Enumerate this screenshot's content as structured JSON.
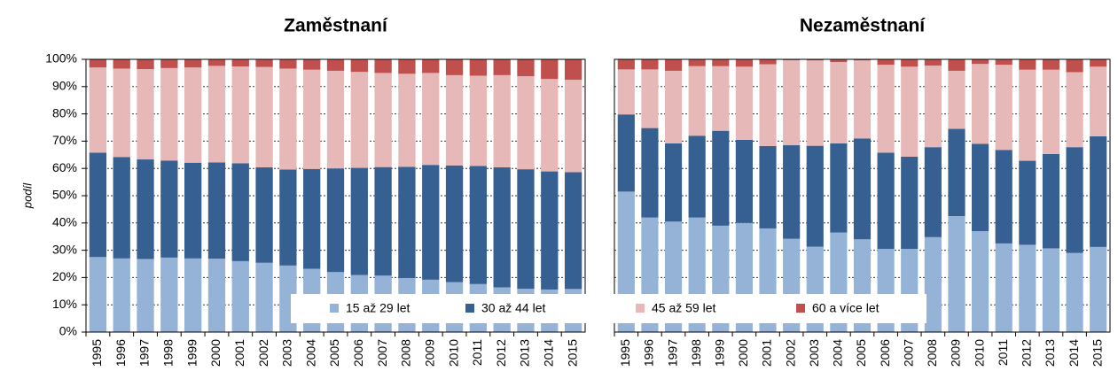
{
  "chart_data": [
    {
      "type": "bar",
      "stacked": true,
      "title": "Zaměstnaní",
      "y_label": "podíl",
      "categories": [
        "1995",
        "1996",
        "1997",
        "1998",
        "1999",
        "2000",
        "2001",
        "2002",
        "2003",
        "2004",
        "2005",
        "2006",
        "2007",
        "2008",
        "2009",
        "2010",
        "2011",
        "2012",
        "2013",
        "2014",
        "2015"
      ],
      "series": [
        {
          "name": "15 až 29 let",
          "color": "#95b3d7",
          "values": [
            27.5,
            27,
            26.8,
            27.3,
            27,
            26.9,
            26,
            25.4,
            24.4,
            23.2,
            22,
            20.9,
            20.7,
            19.8,
            19.2,
            18.3,
            17.6,
            16.4,
            15.9,
            15.6,
            15.8
          ]
        },
        {
          "name": "30 až 44 let",
          "color": "#376092",
          "values": [
            38.3,
            37.2,
            36.5,
            35.6,
            35.1,
            35.3,
            35.9,
            35,
            35.2,
            36.6,
            38,
            39.3,
            39.8,
            40.8,
            42.1,
            42.8,
            43.3,
            44,
            43.8,
            43.3,
            42.8
          ]
        },
        {
          "name": "45 až 59 let",
          "color": "#e6b9b8",
          "values": [
            31.2,
            32.4,
            33.1,
            33.9,
            34.9,
            35.4,
            35.5,
            36.8,
            37,
            36.4,
            35.8,
            35.2,
            34.5,
            34.1,
            33.7,
            33.1,
            33.1,
            33.8,
            34.1,
            33.9,
            33.9
          ]
        },
        {
          "name": "60 a více let",
          "color": "#c0504d",
          "values": [
            3,
            3.4,
            3.6,
            3.2,
            3,
            2.4,
            2.6,
            2.8,
            3.4,
            3.8,
            4.2,
            4.6,
            5,
            5.3,
            5,
            5.8,
            6,
            5.8,
            6.2,
            7.2,
            7.5
          ]
        }
      ],
      "ylim": [
        0,
        100
      ],
      "yticks": [
        {
          "value": 0,
          "label": "0%"
        },
        {
          "value": 10,
          "label": "10%"
        },
        {
          "value": 20,
          "label": "20%"
        },
        {
          "value": 30,
          "label": "30%"
        },
        {
          "value": 40,
          "label": "40%"
        },
        {
          "value": 50,
          "label": "50%"
        },
        {
          "value": 60,
          "label": "60%"
        },
        {
          "value": 70,
          "label": "70%"
        },
        {
          "value": 80,
          "label": "80%"
        },
        {
          "value": 90,
          "label": "90%"
        },
        {
          "value": 100,
          "label": "100%"
        }
      ],
      "grid": true
    },
    {
      "type": "bar",
      "stacked": true,
      "title": "Nezaměstnaní",
      "categories": [
        "1995",
        "1996",
        "1997",
        "1998",
        "1999",
        "2000",
        "2001",
        "2002",
        "2003",
        "2004",
        "2005",
        "2006",
        "2007",
        "2008",
        "2009",
        "2010",
        "2011",
        "2012",
        "2013",
        "2014",
        "2015"
      ],
      "series": [
        {
          "color": "#95b3d7",
          "values": [
            51.5,
            42,
            40.5,
            42,
            39,
            40,
            38,
            34.2,
            31.3,
            36.5,
            34,
            30.5,
            30.5,
            34.8,
            42.5,
            37,
            32.5,
            32,
            30.7,
            29,
            31.2
          ]
        },
        {
          "color": "#376092",
          "values": [
            28.3,
            32.8,
            28.7,
            30,
            34.8,
            30.5,
            30.2,
            34.3,
            37,
            32.7,
            37,
            35.3,
            33.8,
            33,
            32,
            32,
            34.3,
            30.8,
            34.6,
            38.8,
            40.6
          ]
        },
        {
          "color": "#e6b9b8",
          "values": [
            16.5,
            21.5,
            26.6,
            25.5,
            23.7,
            26.8,
            30,
            31.2,
            31.3,
            29.8,
            28.6,
            32.2,
            33,
            29.9,
            21.3,
            29.3,
            31.2,
            33.4,
            30.9,
            27.5,
            25.5
          ]
        },
        {
          "color": "#c0504d",
          "values": [
            3.7,
            3.7,
            4.2,
            2.5,
            2.5,
            2.7,
            1.8,
            0.3,
            0.4,
            1,
            0.4,
            2,
            2.7,
            2.3,
            4.2,
            1.7,
            2,
            3.8,
            3.8,
            4.7,
            2.7
          ]
        }
      ],
      "ylim": [
        0,
        100
      ],
      "yticks": [
        0,
        10,
        20,
        30,
        40,
        50,
        60,
        70,
        80,
        90,
        100
      ],
      "grid": true
    }
  ]
}
